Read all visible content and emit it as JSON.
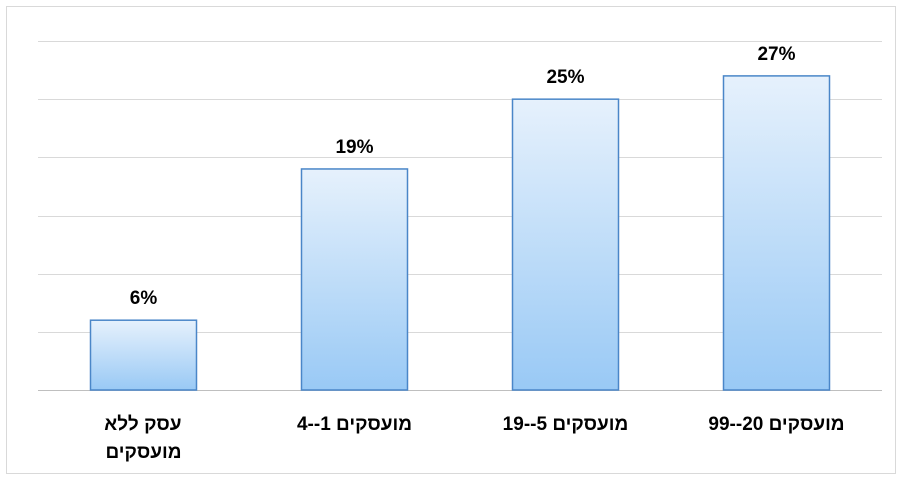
{
  "chart_data": {
    "type": "bar",
    "categories": [
      [
        "עסק ללא",
        "מועסקים"
      ],
      [
        "מועסקים 1--4"
      ],
      [
        "מועסקים 5--19"
      ],
      [
        "מועסקים 20--99"
      ]
    ],
    "values": [
      6,
      19,
      25,
      27
    ],
    "value_labels": [
      "6%",
      "19%",
      "25%",
      "27%"
    ],
    "ylim": [
      0,
      30
    ],
    "grid": true,
    "colors": {
      "bar_top": "#e6f1fc",
      "bar_bottom": "#99c9f5",
      "bar_border": "#4a86c8",
      "grid": "#d9d9d9",
      "axis": "#bfbfbf"
    }
  }
}
